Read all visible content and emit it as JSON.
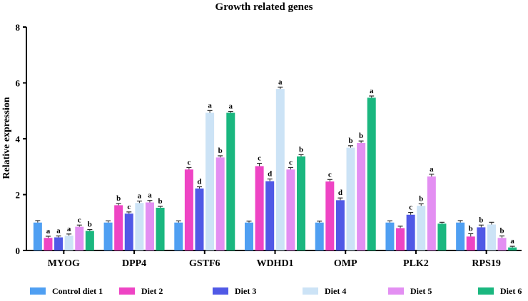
{
  "chart_data": {
    "type": "bar",
    "title": "Growth related genes",
    "xlabel": "",
    "ylabel": "Relative expression",
    "ylim": [
      0,
      8
    ],
    "yticks": [
      0,
      2,
      4,
      6,
      8
    ],
    "categories": [
      "MYOG",
      "DPP4",
      "GSTF6",
      "WDHD1",
      "OMP",
      "PLK2",
      "RPS19"
    ],
    "legend_position": "bottom",
    "series": [
      {
        "name": "Control diet 1",
        "color": "#4f9ff2",
        "values": [
          1.0,
          1.0,
          1.0,
          1.0,
          1.0,
          1.0,
          1.0
        ],
        "errors": [
          0.07,
          0.06,
          0.06,
          0.05,
          0.05,
          0.06,
          0.07
        ],
        "labels": [
          "",
          "",
          "",
          "",
          "",
          "",
          ""
        ]
      },
      {
        "name": "Diet 2",
        "color": "#ee44c4",
        "values": [
          0.45,
          1.62,
          2.9,
          3.02,
          2.47,
          0.8,
          0.5
        ],
        "errors": [
          0.06,
          0.06,
          0.07,
          0.1,
          0.07,
          0.07,
          0.1
        ],
        "labels": [
          "a",
          "b",
          "c",
          "c",
          "c",
          "",
          "b"
        ]
      },
      {
        "name": "Diet 3",
        "color": "#5059e6",
        "values": [
          0.47,
          1.32,
          2.22,
          2.48,
          1.8,
          1.28,
          0.83
        ],
        "errors": [
          0.05,
          0.06,
          0.06,
          0.08,
          0.08,
          0.08,
          0.08
        ],
        "labels": [
          "a",
          "c",
          "d",
          "d",
          "d",
          "c",
          "b"
        ]
      },
      {
        "name": "Diet 4",
        "color": "#cce3f6",
        "values": [
          0.53,
          1.7,
          4.93,
          5.78,
          3.68,
          1.6,
          0.93
        ],
        "errors": [
          0.06,
          0.07,
          0.08,
          0.07,
          0.07,
          0.07,
          0.08
        ],
        "labels": [
          "a",
          "a",
          "a",
          "a",
          "b",
          "b",
          ""
        ]
      },
      {
        "name": "Diet 5",
        "color": "#e38ff2",
        "values": [
          0.85,
          1.72,
          3.33,
          2.9,
          3.85,
          2.65,
          0.45
        ],
        "errors": [
          0.06,
          0.07,
          0.06,
          0.07,
          0.07,
          0.08,
          0.07
        ],
        "labels": [
          "c",
          "a",
          "b",
          "c",
          "b",
          "a",
          "b"
        ]
      },
      {
        "name": "Diet 6",
        "color": "#1ab77f",
        "values": [
          0.7,
          1.53,
          4.93,
          3.37,
          5.47,
          0.96,
          0.11
        ],
        "errors": [
          0.05,
          0.05,
          0.05,
          0.06,
          0.06,
          0.05,
          0.04
        ],
        "labels": [
          "b",
          "b",
          "a",
          "b",
          "a",
          "",
          "a"
        ]
      }
    ]
  }
}
